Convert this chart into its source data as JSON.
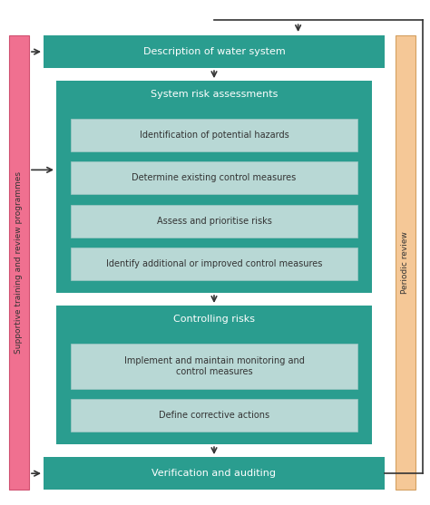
{
  "bg_color": "#ffffff",
  "teal_dark": "#2a9d8f",
  "teal_light": "#b8d8d5",
  "pink": "#f07090",
  "peach": "#f5c897",
  "text_white": "#ffffff",
  "text_dark": "#333333",
  "arrow_color": "#333333",
  "left_bar_label": "Supportive training and review programmes",
  "right_bar_label": "Periodic review",
  "sra_subs": [
    "Identification of potential hazards",
    "Determine existing control measures",
    "Assess and prioritise risks",
    "Identify additional or improved control measures"
  ],
  "cr_subs": [
    "Implement and maintain monitoring and\ncontrol measures",
    "Define corrective actions"
  ]
}
